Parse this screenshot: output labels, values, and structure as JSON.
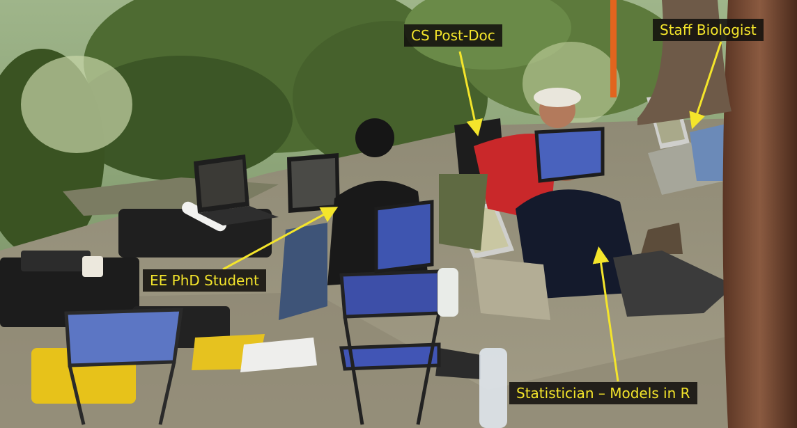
{
  "labels": {
    "cs_postdoc": "CS Post-Doc",
    "staff_biologist": "Staff Biologist",
    "ee_phd_student": "EE PhD Student",
    "statistician": "Statistician – Models in R"
  },
  "colors": {
    "label_text": "#f4e52b",
    "label_bg": "#121010",
    "arrow": "#f4e52b"
  }
}
